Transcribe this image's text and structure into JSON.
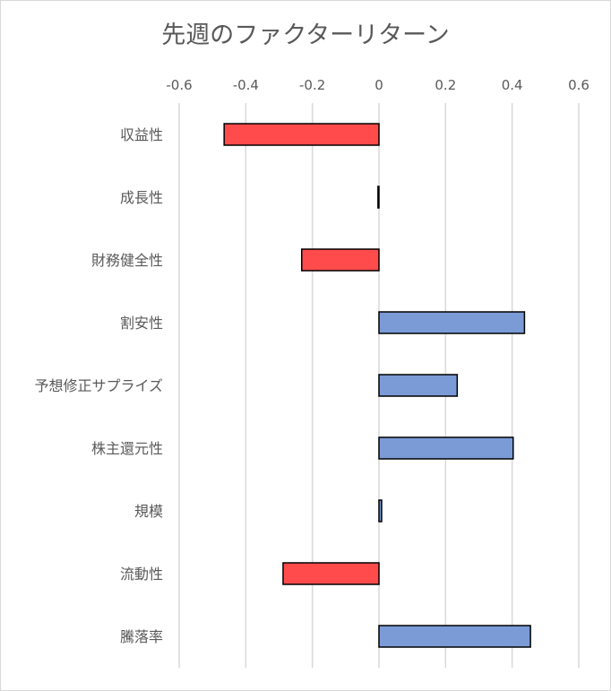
{
  "chart_data": {
    "type": "bar",
    "orientation": "horizontal",
    "title": "先週のファクターリターン",
    "xlabel": "",
    "ylabel": "",
    "xlim": [
      -0.6,
      0.6
    ],
    "xticks": [
      -0.6,
      -0.4,
      -0.2,
      0,
      0.2,
      0.4,
      0.6
    ],
    "xtick_labels": [
      "-0.6",
      "-0.4",
      "-0.2",
      "0",
      "0.2",
      "0.4",
      "0.6"
    ],
    "x_axis_position": "top",
    "grid": "vertical",
    "legend": "none",
    "categories": [
      "収益性",
      "成長性",
      "財務健全性",
      "割安性",
      "予想修正サプライズ",
      "株主還元性",
      "規模",
      "流動性",
      "騰落率"
    ],
    "values": [
      -0.465,
      -0.003,
      -0.232,
      0.437,
      0.235,
      0.403,
      0.008,
      -0.288,
      0.455
    ],
    "colors": {
      "negative": "#ff4b4b",
      "positive": "#7b9bd6",
      "border": "#000000",
      "grid": "#d9d9d9",
      "text": "#595959"
    }
  }
}
